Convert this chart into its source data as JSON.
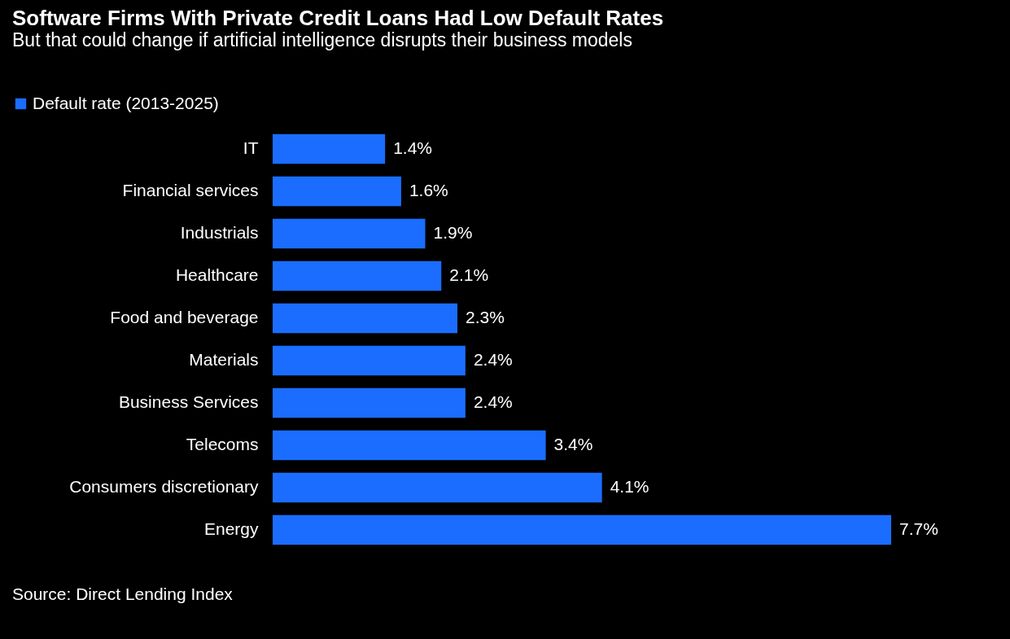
{
  "chart_data": {
    "type": "bar",
    "orientation": "horizontal",
    "title": "Software Firms With Private Credit Loans Had Low Default Rates",
    "subtitle": "But that could change if artificial intelligence disrupts their business models",
    "categories": [
      "IT",
      "Financial services",
      "Industrials",
      "Healthcare",
      "Food and beverage",
      "Materials",
      "Business Services",
      "Telecoms",
      "Consumers discretionary",
      "Energy"
    ],
    "series": [
      {
        "name": "Default rate (2013-2025)",
        "color": "#1a6dff",
        "values": [
          1.4,
          1.6,
          1.9,
          2.1,
          2.3,
          2.4,
          2.4,
          3.4,
          4.1,
          7.7
        ],
        "value_labels": [
          "1.4%",
          "1.6%",
          "1.9%",
          "2.1%",
          "2.3%",
          "2.4%",
          "2.4%",
          "3.4%",
          "4.1%",
          "7.7%"
        ]
      }
    ],
    "legend": "top left",
    "grid": false,
    "annotations": [
      "Source: Direct Lending Index"
    ]
  }
}
